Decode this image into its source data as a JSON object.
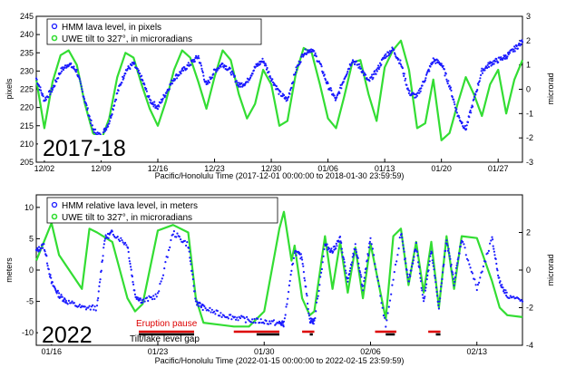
{
  "chart_data": [
    {
      "type": "line",
      "period_label": "2017-18",
      "xlabel": "Pacific/Honolulu Time (2017-12-01 00:00:00 to 2018-01-30 23:59:59)",
      "ylabel": "pixels",
      "ylabel_right": "microrad",
      "xlim": [
        0,
        60
      ],
      "ylim": [
        205,
        245
      ],
      "ylim_right": [
        -3,
        3
      ],
      "x_ticks": [
        {
          "x": 1,
          "label": "12/02"
        },
        {
          "x": 8,
          "label": "12/09"
        },
        {
          "x": 15,
          "label": "12/16"
        },
        {
          "x": 22,
          "label": "12/23"
        },
        {
          "x": 29,
          "label": "12/30"
        },
        {
          "x": 36,
          "label": "01/06"
        },
        {
          "x": 43,
          "label": "01/13"
        },
        {
          "x": 50,
          "label": "01/20"
        },
        {
          "x": 57,
          "label": "01/27"
        }
      ],
      "y_ticks": [
        205,
        210,
        215,
        220,
        225,
        230,
        235,
        240,
        245
      ],
      "y_ticks_right": [
        -3,
        -2,
        -1,
        0,
        1,
        2,
        3
      ],
      "legend_position": "top-left",
      "grid": false,
      "series": [
        {
          "name": "HMM lava level, in pixels",
          "axis": "left",
          "style": "points",
          "color": "#1a1aff",
          "x": [
            0,
            1,
            2,
            3,
            4,
            5,
            6,
            7,
            8,
            9,
            10,
            11,
            12,
            13,
            14,
            15,
            16,
            17,
            18,
            19,
            20,
            21,
            22,
            23,
            24,
            25,
            26,
            27,
            28,
            29,
            30,
            31,
            32,
            33,
            34,
            35,
            36,
            37,
            38,
            39,
            40,
            41,
            42,
            43,
            44,
            45,
            46,
            47,
            48,
            49,
            50,
            51,
            52,
            53,
            54,
            55,
            56,
            57,
            58,
            59,
            60
          ],
          "y": [
            228,
            222,
            225,
            230,
            232,
            230,
            222,
            214,
            212,
            216,
            224,
            230,
            232,
            228,
            222,
            220,
            224,
            228,
            230,
            232,
            234,
            226,
            230,
            232,
            230,
            226,
            227,
            231,
            233,
            228,
            224,
            222,
            230,
            235,
            236,
            232,
            226,
            222,
            228,
            233,
            231,
            227,
            230,
            234,
            236,
            232,
            224,
            223,
            228,
            233,
            232,
            226,
            218,
            214,
            222,
            230,
            232,
            233,
            234,
            236,
            238
          ]
        },
        {
          "name": "UWE tilt to 327°, in microradians",
          "axis": "right",
          "style": "line",
          "color": "#33dd33",
          "x": [
            0,
            1,
            2,
            3,
            4,
            5,
            6,
            7,
            8,
            9,
            10,
            11,
            12,
            13,
            14,
            15,
            16,
            17,
            18,
            19,
            20,
            21,
            22,
            23,
            24,
            25,
            26,
            27,
            28,
            29,
            30,
            31,
            32,
            33,
            34,
            35,
            36,
            37,
            38,
            39,
            40,
            41,
            42,
            43,
            44,
            45,
            46,
            47,
            48,
            49,
            50,
            51,
            52,
            53,
            54,
            55,
            56,
            57,
            58,
            59,
            60
          ],
          "y": [
            0.4,
            -1.6,
            0.3,
            1.4,
            1.6,
            1.0,
            -0.6,
            -1.8,
            -2.1,
            -1.2,
            0.5,
            1.5,
            1.3,
            0.2,
            -0.8,
            -1.5,
            -0.5,
            0.8,
            1.6,
            1.3,
            0.3,
            -0.8,
            0.5,
            1.6,
            1.2,
            -0.2,
            -1.2,
            -0.6,
            0.8,
            0.2,
            -1.5,
            -1.3,
            0.6,
            1.7,
            1.5,
            0.2,
            -1.2,
            -1.6,
            -0.3,
            1.1,
            1.2,
            -0.2,
            -1.3,
            0.9,
            1.6,
            2.0,
            0.8,
            -1.6,
            -1.4,
            0.4,
            -2.1,
            -1.8,
            -0.6,
            0.5,
            -0.2,
            -1.1,
            0.2,
            0.8,
            -1.0,
            0.4,
            1.2
          ]
        }
      ]
    },
    {
      "type": "line",
      "period_label": "2022",
      "xlabel": "Pacific/Honolulu Time (2022-01-15 00:00:00 to 2022-02-15 23:59:59)",
      "ylabel": "meters",
      "ylabel_right": "microrad",
      "xlim": [
        0,
        32
      ],
      "ylim": [
        -12,
        12
      ],
      "ylim_right": [
        -4,
        4
      ],
      "x_ticks": [
        {
          "x": 1,
          "label": "01/16"
        },
        {
          "x": 8,
          "label": "01/23"
        },
        {
          "x": 15,
          "label": "01/30"
        },
        {
          "x": 22,
          "label": "02/06"
        },
        {
          "x": 29,
          "label": "02/13"
        }
      ],
      "y_ticks": [
        -10,
        -5,
        0,
        5,
        10
      ],
      "y_ticks_right": [
        -4,
        -2,
        0,
        2
      ],
      "legend_position": "top-left",
      "grid": false,
      "annotations": [
        {
          "text": "Eruption pause",
          "color": "#dd0000"
        },
        {
          "text": "Tilt/lake level gap",
          "color": "#000000"
        }
      ],
      "pause_intervals": [
        [
          13.0,
          16.0
        ],
        [
          17.5,
          18.3
        ],
        [
          22.3,
          23.7
        ],
        [
          25.8,
          26.6
        ]
      ],
      "gap_intervals": [
        [
          14.5,
          16.0
        ],
        [
          18.0,
          18.2
        ],
        [
          23.0,
          23.6
        ],
        [
          26.3,
          26.6
        ]
      ],
      "series": [
        {
          "name": "HMM relative lava level, in meters",
          "axis": "left",
          "style": "points",
          "color": "#1a1aff",
          "x": [
            0,
            0.5,
            1.0,
            1.5,
            2.0,
            3.0,
            4.0,
            4.5,
            5.0,
            6.0,
            6.5,
            7.0,
            8.0,
            9.0,
            10.0,
            10.5,
            11.0,
            12.0,
            13.0,
            14.0,
            15.0,
            16.0,
            16.3,
            17.0,
            17.5,
            18.0,
            18.3,
            19.0,
            19.5,
            20.0,
            20.5,
            21.0,
            21.5,
            22.0,
            23.0,
            24.0,
            24.5,
            25.0,
            25.5,
            26.0,
            26.5,
            27.0,
            27.5,
            28.0,
            29.0,
            30.0,
            30.5,
            31.0,
            32.0
          ],
          "y": [
            3,
            4,
            -2,
            -4,
            -5,
            -6,
            -6,
            5,
            6,
            4,
            -4,
            -5,
            -4,
            6,
            4,
            -5,
            -6,
            -7,
            -7.5,
            -8,
            -8.2,
            -8.5,
            -8.6,
            3,
            2,
            -8,
            -8.2,
            4,
            3,
            5,
            -2,
            4,
            -3,
            5,
            -9,
            6,
            -2,
            4,
            -5,
            3,
            -6,
            5,
            -2,
            5,
            -3,
            5,
            -2,
            -4,
            -5
          ]
        },
        {
          "name": "UWE tilt to 327°, in microradians",
          "axis": "right",
          "style": "line",
          "color": "#33dd33",
          "x": [
            0,
            0.5,
            1.0,
            1.5,
            2.0,
            3.0,
            3.5,
            4.0,
            5.0,
            6.0,
            6.5,
            7.0,
            8.0,
            9.0,
            10.0,
            10.5,
            11.0,
            12.0,
            13.0,
            14.0,
            15.0,
            16.0,
            16.3,
            16.8,
            17.0,
            17.5,
            18.0,
            18.3,
            19.0,
            19.5,
            20.0,
            20.5,
            21.0,
            21.5,
            22.0,
            23.0,
            23.5,
            24.0,
            24.5,
            25.0,
            25.5,
            26.0,
            26.5,
            27.0,
            27.5,
            28.0,
            29.0,
            30.0,
            30.5,
            31.0,
            32.0
          ],
          "y": [
            0.5,
            1.5,
            2.5,
            0.8,
            0.2,
            -1.0,
            2.2,
            2.0,
            1.5,
            -1.5,
            -2.2,
            -1.8,
            2.1,
            2.4,
            2.0,
            -1.5,
            -2.8,
            -2.9,
            -3.0,
            -3.0,
            -2.2,
            2.2,
            3.1,
            0.5,
            1.3,
            -1.5,
            -2.4,
            -2.2,
            1.8,
            -1.0,
            1.5,
            -1.2,
            1.2,
            -1.5,
            1.4,
            -2.6,
            1.8,
            2.2,
            -0.8,
            1.5,
            -1.2,
            1.5,
            -2.0,
            1.8,
            -1.0,
            1.8,
            1.7,
            -0.6,
            -2.0,
            -2.4,
            -2.5
          ]
        }
      ]
    }
  ]
}
